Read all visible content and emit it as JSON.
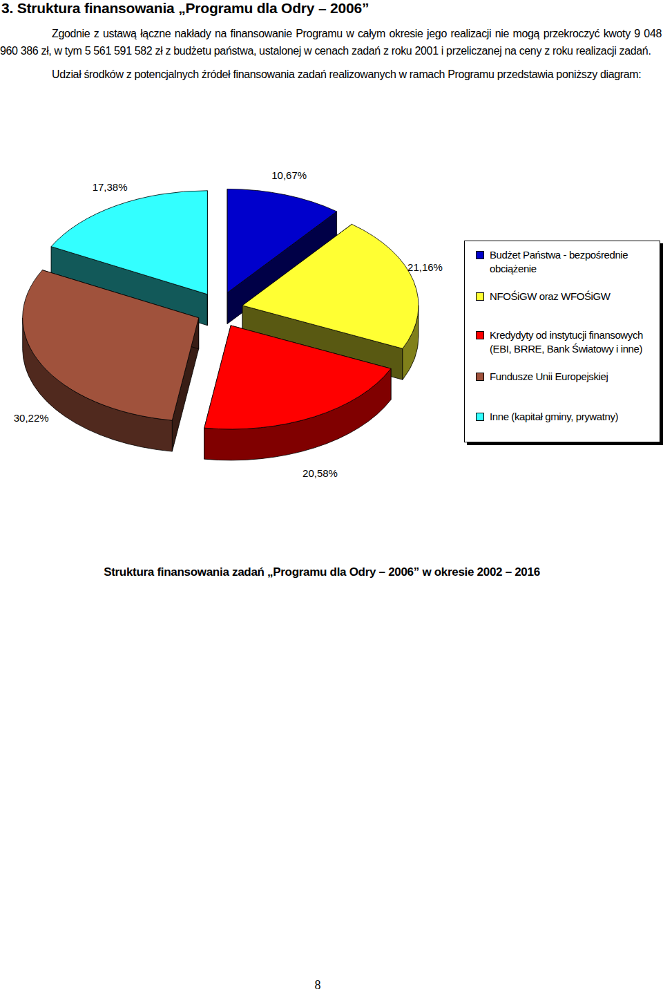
{
  "title": "3. Struktura finansowania „Programu dla Odry – 2006”",
  "paragraphs": [
    "Zgodnie z ustawą łączne nakłady na finansowanie Programu w całym okresie jego realizacji nie mogą przekroczyć kwoty 9 048 960 386 zł, w tym 5 561 591 582 zł z budżetu państwa, ustalonej w cenach zadań z roku 2001 i przeliczanej na ceny z roku realizacji zadań.",
    "Udział środków z potencjalnych źródeł finansowania zadań realizowanych w ramach Programu przedstawia poniższy diagram:"
  ],
  "chart_data": {
    "type": "pie",
    "categories": [
      "Budżet Państwa - bezpośrednie obciążenie",
      "NFOŚiGW oraz WFOŚiGW",
      "Kredydyty od instytucji finansowych (EBI, BRRE, Bank Światowy i inne)",
      "Fundusze Unii Europejskiej",
      "Inne (kapitał gminy, prywatny)"
    ],
    "values": [
      10.67,
      21.16,
      20.58,
      30.22,
      17.38
    ],
    "value_labels": [
      "10,67%",
      "21,16%",
      "20,58%",
      "30,22%",
      "17,38%"
    ],
    "colors": [
      "#0000cc",
      "#ffff33",
      "#ff0000",
      "#a0523c",
      "#33ffff"
    ],
    "data_labels": true,
    "legend": "right"
  },
  "caption": "Struktura finansowania zadań „Programu dla Odry – 2006” w okresie 2002 – 2016",
  "page_number": 8
}
